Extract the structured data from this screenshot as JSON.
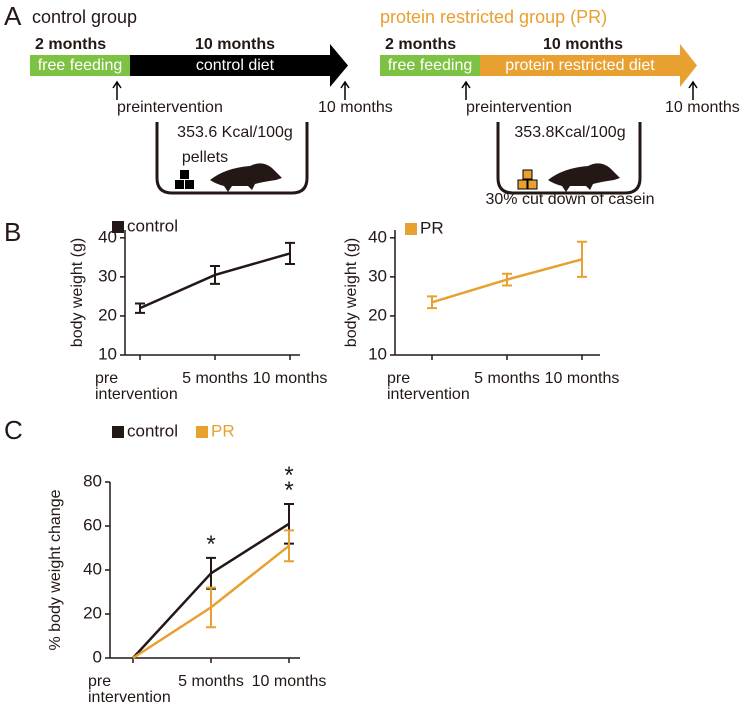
{
  "panel_labels": [
    "A",
    "B",
    "C"
  ],
  "diagram": {
    "groups": [
      {
        "title": "control group",
        "phase1": "2 months",
        "phase1_label": "free feeding",
        "phase2": "10 months",
        "phase2_label": "control diet",
        "start": "preintervention",
        "end": "10 months",
        "energy": "353.6 Kcal/100g",
        "food": "pellets"
      },
      {
        "title": "protein restricted group (PR)",
        "phase1": "2 months",
        "phase1_label": "free feeding",
        "phase2": "10 months",
        "phase2_label": "protein restricted diet",
        "start": "preintervention",
        "end": "10 months",
        "energy": "353.8Kcal/100g",
        "food": "30% cut down of casein"
      }
    ]
  },
  "chart_data": [
    {
      "type": "line",
      "ylabel": "body weight (g)",
      "categories": [
        "pre\nintervention",
        "5 months",
        "10 months"
      ],
      "ylim": [
        10,
        42
      ],
      "yticks": [
        10,
        20,
        30,
        40
      ],
      "series": [
        {
          "name": "control",
          "color": "#231815",
          "values": [
            22,
            30.5,
            36
          ],
          "errors": [
            1.2,
            2.3,
            2.7
          ]
        }
      ]
    },
    {
      "type": "line",
      "ylabel": "body weight (g)",
      "categories": [
        "pre\nintervention",
        "5 months",
        "10 months"
      ],
      "ylim": [
        10,
        42
      ],
      "yticks": [
        10,
        20,
        30,
        40
      ],
      "series": [
        {
          "name": "PR",
          "color": "#e8a030",
          "values": [
            23.5,
            29.3,
            34.5
          ],
          "errors": [
            1.5,
            1.5,
            4.5
          ]
        }
      ]
    },
    {
      "type": "line",
      "ylabel": "% body weight change",
      "categories": [
        "pre\nintervention",
        "5 months",
        "10 months"
      ],
      "ylim": [
        0,
        80
      ],
      "yticks": [
        0,
        20,
        40,
        60,
        80
      ],
      "series": [
        {
          "name": "control",
          "color": "#231815",
          "values": [
            0,
            38.5,
            61
          ],
          "errors": [
            0,
            7,
            9
          ]
        },
        {
          "name": "PR",
          "color": "#e8a030",
          "values": [
            0,
            23,
            51
          ],
          "errors": [
            0,
            9,
            7
          ]
        }
      ],
      "annotations": [
        {
          "text": "*",
          "category": 1
        },
        {
          "text": "**",
          "category": 2
        }
      ]
    }
  ]
}
